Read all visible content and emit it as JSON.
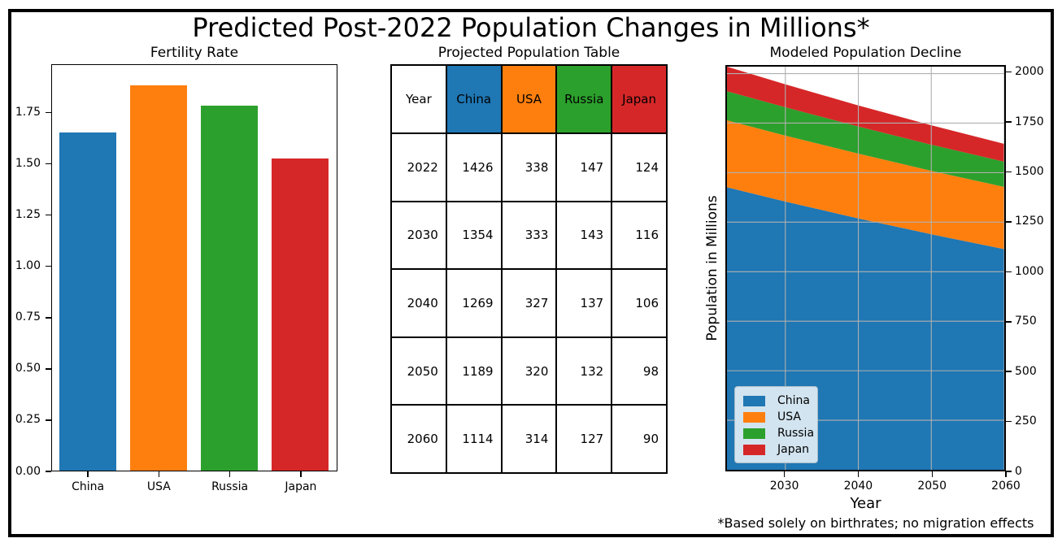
{
  "figure": {
    "title": "Predicted Post-2022 Population Changes in Millions*",
    "footnote": "*Based solely on birthrates; no migration effects",
    "countries": [
      "China",
      "USA",
      "Russia",
      "Japan"
    ],
    "series_colors": [
      "#1f77b4",
      "#ff7f0e",
      "#2ca02c",
      "#d62728"
    ],
    "background": "#ffffff",
    "frame_color": "#000000",
    "grid_color": "#b0b0b0",
    "legend_bg": "#d2e4f0",
    "legend_border": "#a9bbc7"
  },
  "chart_data": [
    {
      "type": "bar",
      "title": "Fertility Rate",
      "categories": [
        "China",
        "USA",
        "Russia",
        "Japan"
      ],
      "values": [
        1.66,
        1.89,
        1.79,
        1.53
      ],
      "colors": [
        "#1f77b4",
        "#ff7f0e",
        "#2ca02c",
        "#d62728"
      ],
      "xlabel": "",
      "ylabel": "",
      "ylim": [
        0,
        1.985
      ],
      "yticks": [
        0,
        0.25,
        0.5,
        0.75,
        1.0,
        1.25,
        1.5,
        1.75
      ],
      "ytick_format": "2dp",
      "grid": false,
      "legend_position": "none"
    },
    {
      "type": "table",
      "title": "Projected Population Table",
      "columns": [
        "Year",
        "China",
        "USA",
        "Russia",
        "Japan"
      ],
      "header_colors": [
        "#ffffff",
        "#1f77b4",
        "#ff7f0e",
        "#2ca02c",
        "#d62728"
      ],
      "rows": [
        [
          2022,
          1426,
          338,
          147,
          124
        ],
        [
          2030,
          1354,
          333,
          143,
          116
        ],
        [
          2040,
          1269,
          327,
          137,
          106
        ],
        [
          2050,
          1189,
          320,
          132,
          98
        ],
        [
          2060,
          1114,
          314,
          127,
          90
        ]
      ]
    },
    {
      "type": "area",
      "title": "Modeled Population Decline",
      "xlabel": "Year",
      "ylabel": "Population in Millions",
      "x": [
        2022,
        2030,
        2040,
        2050,
        2060
      ],
      "series": [
        {
          "name": "China",
          "color": "#1f77b4",
          "values": [
            1426,
            1354,
            1269,
            1189,
            1114
          ]
        },
        {
          "name": "USA",
          "color": "#ff7f0e",
          "values": [
            338,
            333,
            327,
            320,
            314
          ]
        },
        {
          "name": "Russia",
          "color": "#2ca02c",
          "values": [
            147,
            143,
            137,
            132,
            127
          ]
        },
        {
          "name": "Japan",
          "color": "#d62728",
          "values": [
            124,
            116,
            106,
            98,
            90
          ]
        }
      ],
      "xlim": [
        2022,
        2060
      ],
      "ylim": [
        0,
        2035
      ],
      "xticks": [
        2030,
        2040,
        2050,
        2060
      ],
      "yticks": [
        0,
        250,
        500,
        750,
        1000,
        1250,
        1500,
        1750,
        2000
      ],
      "yticks_side": "right",
      "grid": true,
      "legend_position": "lower left",
      "legend_labels": [
        "China",
        "USA",
        "Russia",
        "Japan"
      ]
    }
  ]
}
